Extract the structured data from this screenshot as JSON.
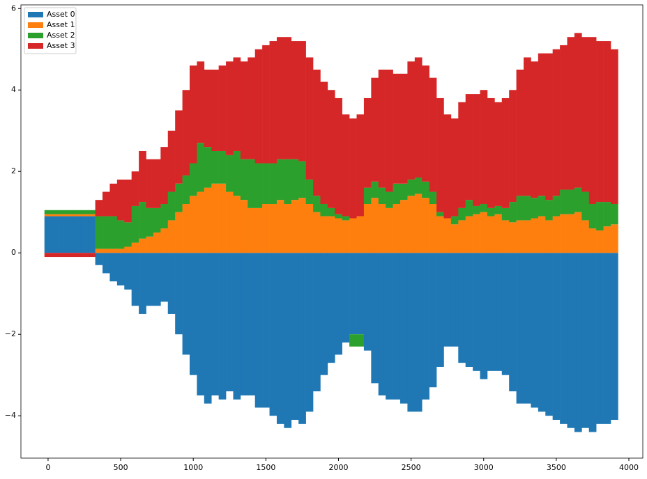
{
  "chart_data": {
    "type": "stacked_bar",
    "x": [
      0,
      50,
      100,
      150,
      200,
      250,
      300,
      350,
      400,
      450,
      500,
      550,
      600,
      650,
      700,
      750,
      800,
      850,
      900,
      950,
      1000,
      1050,
      1100,
      1150,
      1200,
      1250,
      1300,
      1350,
      1400,
      1450,
      1500,
      1550,
      1600,
      1650,
      1700,
      1750,
      1800,
      1850,
      1900,
      1950,
      2000,
      2050,
      2100,
      2150,
      2200,
      2250,
      2300,
      2350,
      2400,
      2450,
      2500,
      2550,
      2600,
      2650,
      2700,
      2750,
      2800,
      2850,
      2900,
      2950,
      3000,
      3050,
      3100,
      3150,
      3200,
      3250,
      3300,
      3350,
      3400,
      3450,
      3500,
      3550,
      3600,
      3650,
      3700,
      3750,
      3800,
      3850,
      3900
    ],
    "series": [
      {
        "name": "Asset 0",
        "color": "#1f77b4",
        "values": [
          0.9,
          0.9,
          0.9,
          0.9,
          0.9,
          0.9,
          0.9,
          -0.3,
          -0.5,
          -0.7,
          -0.8,
          -0.9,
          -1.3,
          -1.5,
          -1.3,
          -1.3,
          -1.2,
          -1.5,
          -2.0,
          -2.5,
          -3.0,
          -3.5,
          -3.7,
          -3.5,
          -3.6,
          -3.4,
          -3.6,
          -3.5,
          -3.5,
          -3.8,
          -3.8,
          -4.0,
          -4.2,
          -4.3,
          -4.1,
          -4.2,
          -3.9,
          -3.4,
          -3.0,
          -2.7,
          -2.5,
          -2.2,
          -2.0,
          -2.0,
          -2.4,
          -3.2,
          -3.5,
          -3.6,
          -3.6,
          -3.7,
          -3.9,
          -3.9,
          -3.6,
          -3.3,
          -2.8,
          -2.3,
          -2.3,
          -2.7,
          -2.8,
          -2.9,
          -3.1,
          -2.9,
          -2.9,
          -3.0,
          -3.4,
          -3.7,
          -3.7,
          -3.8,
          -3.9,
          -4.0,
          -4.1,
          -4.2,
          -4.3,
          -4.4,
          -4.3,
          -4.4,
          -4.2,
          -4.2,
          -4.1
        ]
      },
      {
        "name": "Asset 1",
        "color": "#ff7f0e",
        "values": [
          0.05,
          0.05,
          0.05,
          0.05,
          0.05,
          0.05,
          0.05,
          0.1,
          0.1,
          0.1,
          0.1,
          0.15,
          0.25,
          0.35,
          0.4,
          0.5,
          0.6,
          0.8,
          1.0,
          1.2,
          1.4,
          1.5,
          1.6,
          1.7,
          1.7,
          1.5,
          1.4,
          1.3,
          1.1,
          1.1,
          1.2,
          1.2,
          1.3,
          1.2,
          1.3,
          1.35,
          1.2,
          1.0,
          0.9,
          0.9,
          0.85,
          0.8,
          0.85,
          0.9,
          1.2,
          1.35,
          1.2,
          1.1,
          1.2,
          1.3,
          1.4,
          1.45,
          1.35,
          1.2,
          0.9,
          0.85,
          0.7,
          0.8,
          0.9,
          0.95,
          1.0,
          0.9,
          0.95,
          0.8,
          0.75,
          0.8,
          0.8,
          0.85,
          0.9,
          0.8,
          0.9,
          0.95,
          0.95,
          1.0,
          0.8,
          0.6,
          0.55,
          0.65,
          0.7
        ]
      },
      {
        "name": "Asset 2",
        "color": "#2ca02c",
        "values": [
          0.1,
          0.1,
          0.1,
          0.1,
          0.1,
          0.1,
          0.1,
          0.8,
          0.8,
          0.8,
          0.7,
          0.6,
          0.9,
          0.9,
          0.7,
          0.6,
          0.6,
          0.7,
          0.7,
          0.7,
          0.8,
          1.2,
          1.0,
          0.8,
          0.8,
          0.9,
          1.1,
          1.0,
          1.2,
          1.1,
          1.0,
          1.0,
          1.0,
          1.1,
          1.0,
          0.9,
          0.6,
          0.4,
          0.3,
          0.2,
          0.1,
          0.1,
          -0.3,
          -0.3,
          0.4,
          0.4,
          0.4,
          0.4,
          0.5,
          0.4,
          0.4,
          0.4,
          0.4,
          0.3,
          0.1,
          0.0,
          0.2,
          0.3,
          0.4,
          0.2,
          0.2,
          0.2,
          0.2,
          0.3,
          0.5,
          0.6,
          0.6,
          0.5,
          0.5,
          0.5,
          0.5,
          0.6,
          0.6,
          0.6,
          0.7,
          0.6,
          0.7,
          0.6,
          0.5
        ]
      },
      {
        "name": "Asset 3",
        "color": "#d62728",
        "values": [
          -0.1,
          -0.1,
          -0.1,
          -0.1,
          -0.1,
          -0.1,
          -0.1,
          0.4,
          0.6,
          0.8,
          1.0,
          1.05,
          0.85,
          1.25,
          1.2,
          1.2,
          1.4,
          1.5,
          1.8,
          2.1,
          2.4,
          2.0,
          1.9,
          2.0,
          2.1,
          2.3,
          2.3,
          2.4,
          2.5,
          2.8,
          2.9,
          3.0,
          3.0,
          3.0,
          2.9,
          2.95,
          3.0,
          3.1,
          3.0,
          2.9,
          2.85,
          2.5,
          2.45,
          2.5,
          2.2,
          2.55,
          2.9,
          3.0,
          2.7,
          2.7,
          2.9,
          2.95,
          2.85,
          2.8,
          2.8,
          2.55,
          2.4,
          2.6,
          2.6,
          2.75,
          2.8,
          2.7,
          2.55,
          2.7,
          2.75,
          3.1,
          3.4,
          3.35,
          3.5,
          3.6,
          3.6,
          3.55,
          3.75,
          3.8,
          3.8,
          4.1,
          3.95,
          3.95,
          3.8
        ]
      }
    ],
    "xlim": [
      -187,
      4096
    ],
    "ylim": [
      -5.04,
      6.09
    ],
    "xticks": [
      0,
      500,
      1000,
      1500,
      2000,
      2500,
      3000,
      3500,
      4000
    ],
    "yticks": [
      {
        "value": -4,
        "label": "−4"
      },
      {
        "value": -2,
        "label": "−2"
      },
      0,
      2,
      4,
      6
    ],
    "legend": "upper left"
  }
}
